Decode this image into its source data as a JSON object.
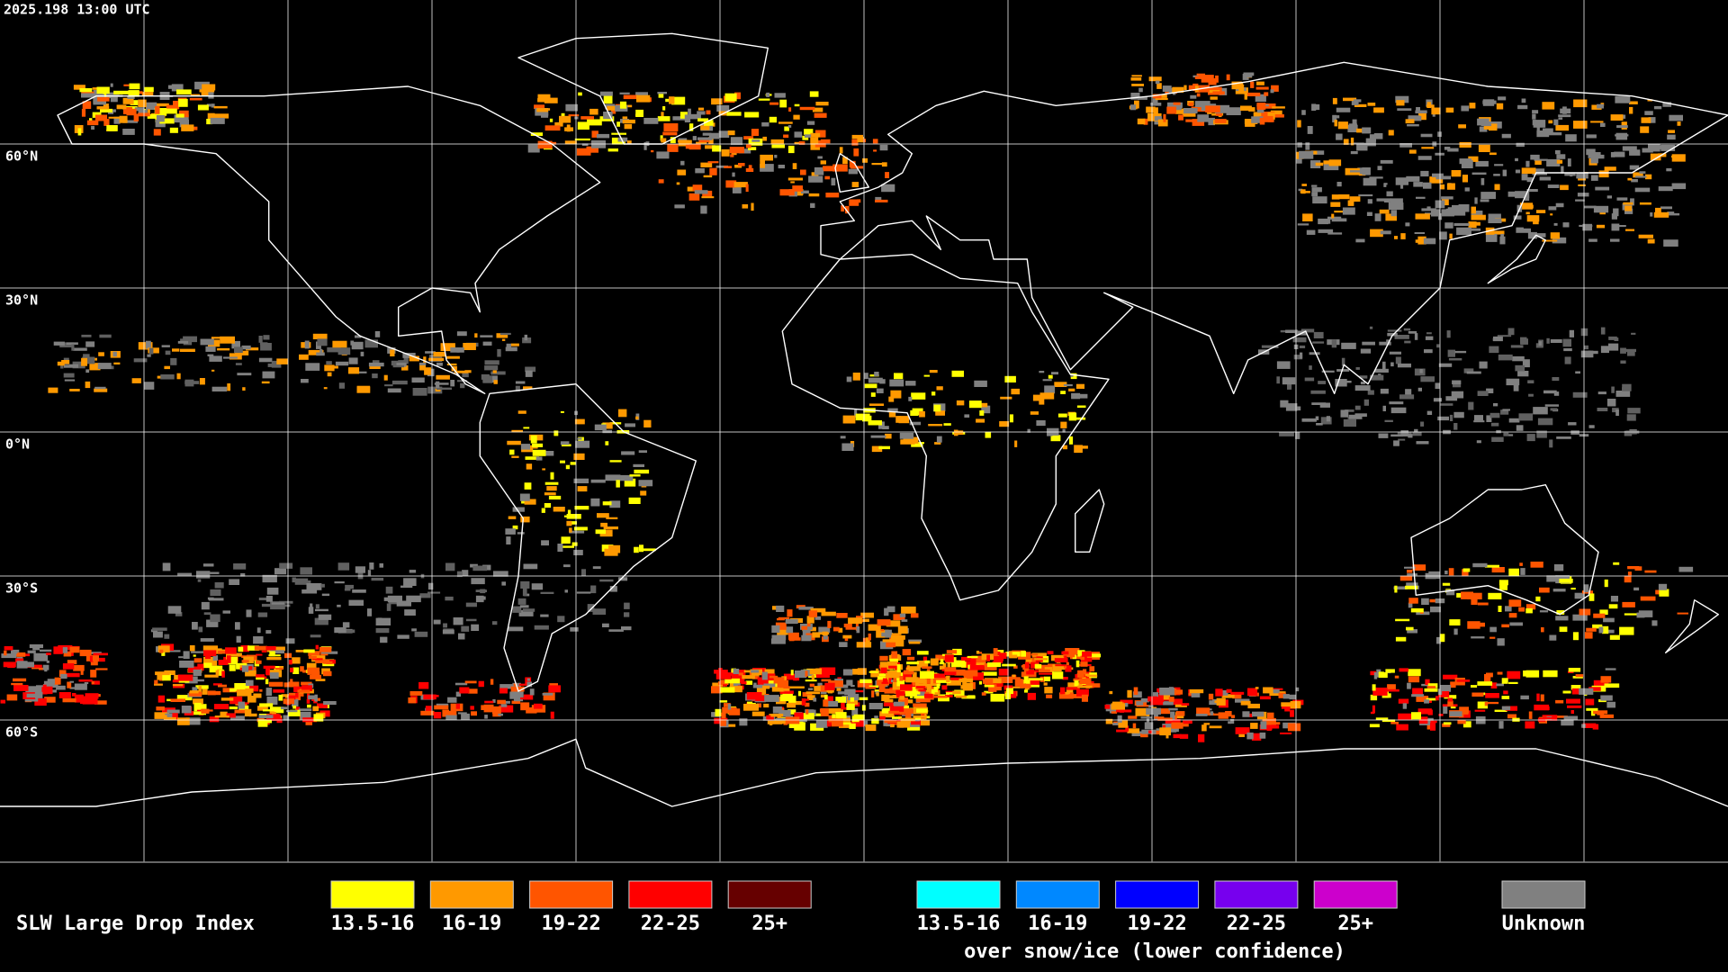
{
  "header": {
    "timestamp": "2025.198 13:00 UTC"
  },
  "map": {
    "latitude_labels": [
      "60°N",
      "30°N",
      "0°N",
      "30°S",
      "60°S"
    ]
  },
  "legend": {
    "title": "SLW Large Drop Index",
    "items": [
      {
        "label": "13.5-16",
        "color": "#ffff00"
      },
      {
        "label": "16-19",
        "color": "#ff9900"
      },
      {
        "label": "19-22",
        "color": "#ff5500"
      },
      {
        "label": "22-25",
        "color": "#ff0000"
      },
      {
        "label": "25+",
        "color": "#660000"
      }
    ],
    "snow_ice_items": [
      {
        "label": "13.5-16",
        "color": "#00ffff"
      },
      {
        "label": "16-19",
        "color": "#0088ff"
      },
      {
        "label": "19-22",
        "color": "#0000ff"
      },
      {
        "label": "22-25",
        "color": "#7700ee"
      },
      {
        "label": "25+",
        "color": "#cc00cc"
      }
    ],
    "snow_ice_caption": "over snow/ice (lower confidence)",
    "unknown": {
      "label": "Unknown",
      "color": "#808080"
    }
  }
}
